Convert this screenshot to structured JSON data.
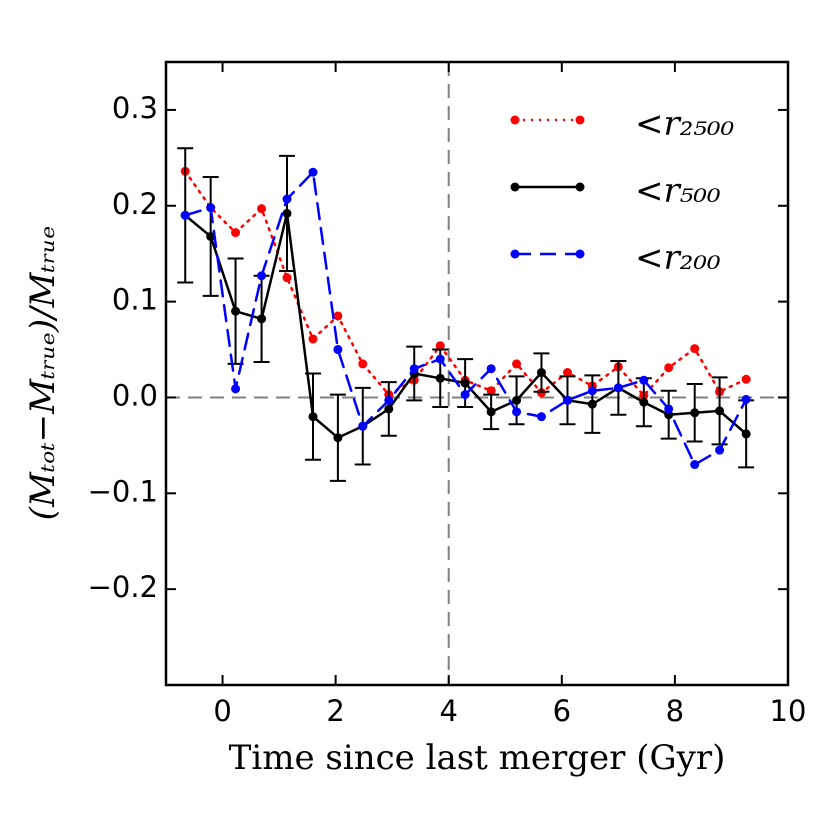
{
  "chart_data": {
    "type": "line",
    "xlabel": "Time since last merger (Gyr)",
    "ylabel": "(Mₜₒₜ−Mₜᵣᵤₑ)/Mₜᵣᵤₑ",
    "x": [
      -0.66,
      -0.21,
      0.23,
      0.69,
      1.14,
      1.6,
      2.04,
      2.48,
      2.94,
      3.39,
      3.85,
      4.29,
      4.75,
      5.2,
      5.64,
      6.1,
      6.54,
      7.0,
      7.45,
      7.89,
      8.35,
      8.79,
      9.26
    ],
    "series": [
      {
        "name": "<r₂₅₀₀",
        "color": "#ff0000",
        "linestyle": "dotted",
        "values": [
          0.236,
          0.198,
          0.172,
          0.197,
          0.125,
          0.061,
          0.085,
          0.035,
          0.003,
          0.018,
          0.054,
          0.018,
          0.007,
          0.035,
          0.005,
          0.026,
          0.012,
          0.032,
          0.002,
          0.031,
          0.051,
          0.006,
          0.019
        ]
      },
      {
        "name": "<r₅₀₀",
        "color": "#000000",
        "linestyle": "solid",
        "values": [
          0.19,
          0.168,
          0.09,
          0.082,
          0.192,
          -0.02,
          -0.042,
          -0.03,
          -0.012,
          0.025,
          0.02,
          0.015,
          -0.015,
          -0.003,
          0.026,
          -0.003,
          -0.007,
          0.01,
          -0.005,
          -0.018,
          -0.016,
          -0.014,
          -0.038
        ],
        "errors": [
          0.07,
          0.062,
          0.055,
          0.045,
          0.06,
          0.045,
          0.045,
          0.04,
          0.028,
          0.028,
          0.03,
          0.025,
          0.018,
          0.025,
          0.02,
          0.025,
          0.03,
          0.028,
          0.025,
          0.025,
          0.03,
          0.035,
          0.035
        ]
      },
      {
        "name": "<r₂₀₀",
        "color": "#0000ff",
        "linestyle": "dashed",
        "values": [
          0.19,
          0.198,
          0.009,
          0.127,
          0.207,
          0.235,
          0.05,
          -0.03,
          -0.003,
          0.03,
          0.04,
          0.003,
          0.03,
          -0.015,
          -0.02,
          -0.003,
          0.007,
          0.01,
          0.018,
          -0.012,
          -0.07,
          -0.055,
          -0.002
        ]
      }
    ],
    "xlim": [
      -1,
      10
    ],
    "ylim": [
      -0.3,
      0.35
    ],
    "xticks": [
      0,
      2,
      4,
      6,
      8,
      10
    ],
    "yticks": [
      {
        "value": -0.2,
        "label": "−0.2"
      },
      {
        "value": -0.1,
        "label": "−0.1"
      },
      {
        "value": 0,
        "label": "0.0"
      },
      0.1,
      0.2,
      0.3
    ],
    "hlines": [
      0
    ],
    "vlines": [
      4
    ],
    "legend": "upper right",
    "grid": false
  }
}
